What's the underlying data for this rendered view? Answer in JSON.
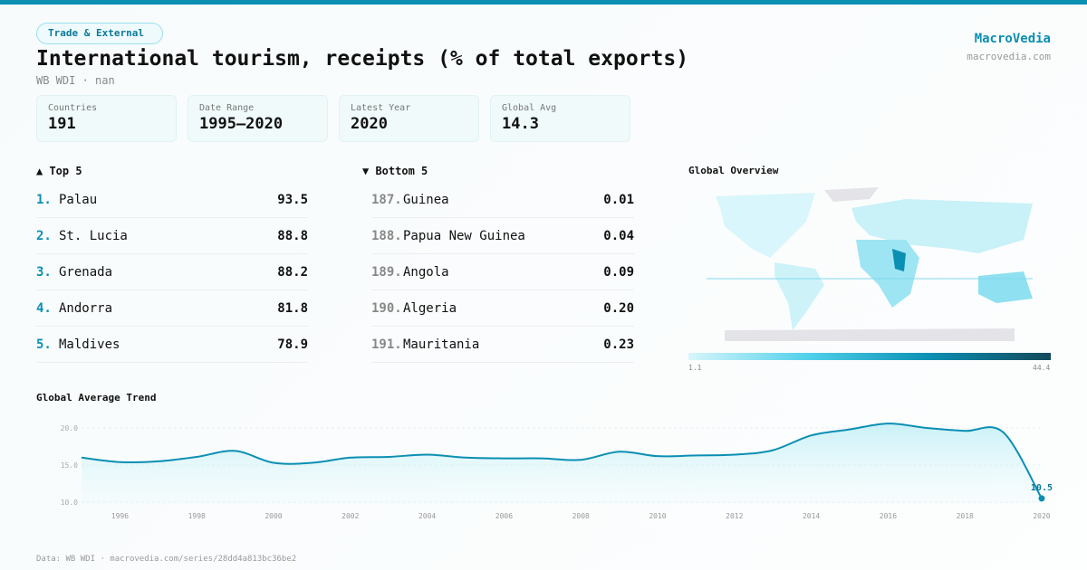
{
  "category": "Trade & External",
  "title": "International tourism, receipts (% of total exports)",
  "subtitle": "WB WDI · nan",
  "brand": {
    "name": "MacroVedia",
    "url": "macrovedia.com"
  },
  "stats": [
    {
      "label": "Countries",
      "value": "191"
    },
    {
      "label": "Date Range",
      "value": "1995–2020"
    },
    {
      "label": "Latest Year",
      "value": "2020"
    },
    {
      "label": "Global Avg",
      "value": "14.3"
    }
  ],
  "top5": {
    "title": "▲ Top 5",
    "items": [
      {
        "rank": "1.",
        "name": "Palau",
        "value": "93.5"
      },
      {
        "rank": "2.",
        "name": "St. Lucia",
        "value": "88.8"
      },
      {
        "rank": "3.",
        "name": "Grenada",
        "value": "88.2"
      },
      {
        "rank": "4.",
        "name": "Andorra",
        "value": "81.8"
      },
      {
        "rank": "5.",
        "name": "Maldives",
        "value": "78.9"
      }
    ]
  },
  "bottom5": {
    "title": "▼ Bottom 5",
    "items": [
      {
        "rank": "187.",
        "name": "Guinea",
        "value": "0.01"
      },
      {
        "rank": "188.",
        "name": "Papua New Guinea",
        "value": "0.04"
      },
      {
        "rank": "189.",
        "name": "Angola",
        "value": "0.09"
      },
      {
        "rank": "190.",
        "name": "Algeria",
        "value": "0.20"
      },
      {
        "rank": "191.",
        "name": "Mauritania",
        "value": "0.23"
      }
    ]
  },
  "map": {
    "title": "Global Overview",
    "legend_min": "1.1",
    "legend_max": "44.4"
  },
  "footer": "Data: WB WDI · macrovedia.com/series/28dd4a813bc36be2",
  "chart_data": {
    "type": "line",
    "title": "Global Average Trend",
    "xlabel": "",
    "ylabel": "",
    "x": [
      1995,
      1996,
      1997,
      1998,
      1999,
      2000,
      2001,
      2002,
      2003,
      2004,
      2005,
      2006,
      2007,
      2008,
      2009,
      2010,
      2011,
      2012,
      2013,
      2014,
      2015,
      2016,
      2017,
      2018,
      2019,
      2020
    ],
    "values": [
      16.0,
      15.4,
      15.5,
      16.1,
      16.9,
      15.3,
      15.3,
      16.0,
      16.1,
      16.4,
      16.0,
      15.9,
      15.9,
      15.7,
      16.8,
      16.2,
      16.3,
      16.4,
      17.0,
      19.0,
      19.8,
      20.6,
      20.0,
      19.6,
      19.4,
      10.5
    ],
    "ylim": [
      10,
      20
    ],
    "yticks": [
      "10.0",
      "15.0",
      "20.0"
    ],
    "xticks": [
      "1996",
      "1998",
      "2000",
      "2002",
      "2004",
      "2006",
      "2008",
      "2010",
      "2012",
      "2014",
      "2016",
      "2018",
      "2020"
    ],
    "last_label": "10.5",
    "color": "#0b8fb3"
  }
}
